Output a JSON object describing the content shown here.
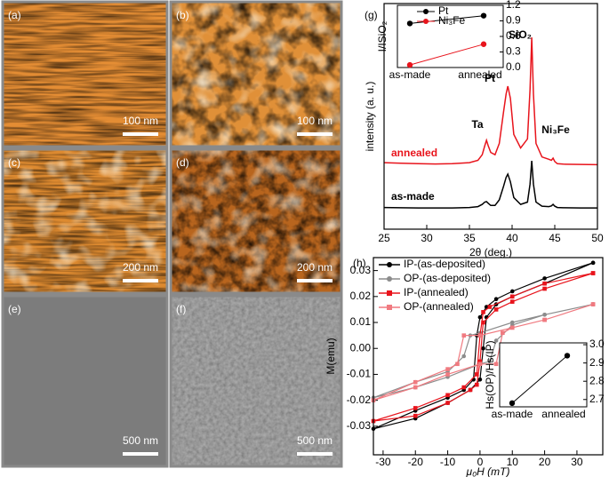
{
  "panels": [
    {
      "label": "(a)",
      "scale_bar": "100 nm"
    },
    {
      "label": "(b)",
      "scale_bar": "100 nm"
    },
    {
      "label": "(c)",
      "scale_bar": "200 nm"
    },
    {
      "label": "(d)",
      "scale_bar": "200 nm"
    },
    {
      "label": "(e)",
      "scale_bar": "500 nm"
    },
    {
      "label": "(f)",
      "scale_bar": "500 nm"
    }
  ],
  "chart_data": [
    {
      "type": "line",
      "label": "(g)",
      "x_label": "2θ (deg.)",
      "y_label": "intensity (a. u.)",
      "x": [
        25,
        27,
        29,
        31,
        33,
        35,
        36,
        36.5,
        36.8,
        37,
        37.2,
        37.5,
        38,
        38.5,
        39,
        39.3,
        39.5,
        39.8,
        40.2,
        41,
        41.8,
        42.1,
        42.3,
        42.5,
        42.8,
        43.5,
        44.3,
        44.6,
        44.8,
        45,
        45.3,
        46,
        48,
        50
      ],
      "series": [
        {
          "name": "annealed",
          "color": "#e8141c",
          "values": [
            29.5,
            29.2,
            29,
            28.9,
            29,
            29.5,
            30.5,
            33,
            37,
            39.4,
            37,
            34,
            33,
            38,
            52,
            60,
            63.4,
            58,
            42,
            36,
            40,
            62,
            85,
            60,
            38,
            32,
            31,
            30.5,
            31.5,
            30,
            29,
            28.8,
            28.7,
            28.6
          ]
        },
        {
          "name": "as-made",
          "color": "#000000",
          "values": [
            9.6,
            9.5,
            9.4,
            9.4,
            9.4,
            9.6,
            10,
            11,
            12,
            12.2,
            11.5,
            10.5,
            10.5,
            13,
            19,
            23,
            24.4,
            21,
            14,
            11,
            12,
            20,
            30.3,
            20,
            12,
            10.2,
            10,
            10.3,
            11,
            10.2,
            9.6,
            9.5,
            9.4,
            9.4
          ]
        }
      ],
      "annotations": [
        "Ta",
        "Pt",
        "SiO₂",
        "Ni₃Fe"
      ],
      "xlim": [
        25,
        50
      ],
      "ylim": [
        0,
        100
      ],
      "xticks": [
        25,
        30,
        35,
        40,
        45,
        50
      ]
    },
    {
      "type": "line",
      "y_label": "I/ISiO₂",
      "categories": [
        "as-made",
        "annealed"
      ],
      "series": [
        {
          "name": "Pt",
          "color": "#000000",
          "values": [
            0.85,
            1.0
          ]
        },
        {
          "name": "Ni₃Fe",
          "color": "#e8141c",
          "values": [
            0.05,
            0.45
          ]
        }
      ],
      "ylim": [
        0,
        1.2
      ],
      "yticks": [
        {
          "value": 0,
          "label": "0.0"
        },
        0.3,
        0.6,
        0.9,
        1.2
      ]
    },
    {
      "type": "loop",
      "label": "(h)",
      "x_label": "μ₀H (mT)",
      "y_label": "M(emu)",
      "series": [
        {
          "name": "IP-(as-deposited)",
          "color": "#000000",
          "x": [
            35,
            20,
            10,
            5,
            2,
            0,
            -1,
            -2,
            -5,
            -10,
            -20,
            -33,
            -20,
            -10,
            -3,
            0,
            1,
            2,
            5,
            10,
            20,
            35
          ],
          "values": [
            0.033,
            0.027,
            0.022,
            0.019,
            0.016,
            0.012,
            0.005,
            -0.012,
            -0.016,
            -0.019,
            -0.024,
            -0.031,
            -0.027,
            -0.021,
            -0.016,
            -0.012,
            0,
            0.012,
            0.017,
            0.02,
            0.025,
            0.033
          ]
        },
        {
          "name": "OP-(as-deposited)",
          "color": "#8c8c8c",
          "x": [
            35,
            20,
            10,
            0,
            -3,
            -5,
            -10,
            -20,
            -33,
            -20,
            -10,
            0,
            3,
            5,
            10,
            20,
            35
          ],
          "values": [
            0.017,
            0.013,
            0.01,
            0.006,
            0.005,
            -0.003,
            -0.009,
            -0.013,
            -0.019,
            -0.015,
            -0.011,
            -0.006,
            -0.005,
            0.003,
            0.009,
            0.013,
            0.017
          ]
        },
        {
          "name": "IP-(annealed)",
          "color": "#e8141c",
          "x": [
            35,
            20,
            10,
            3,
            1,
            0,
            -1,
            -5,
            -10,
            -20,
            -33,
            -20,
            -10,
            -3,
            -1,
            0,
            1,
            5,
            10,
            20,
            35
          ],
          "values": [
            0.029,
            0.025,
            0.02,
            0.016,
            0.014,
            0.005,
            -0.01,
            -0.015,
            -0.018,
            -0.023,
            -0.028,
            -0.026,
            -0.021,
            -0.016,
            -0.014,
            -0.005,
            0.01,
            0.015,
            0.018,
            0.023,
            0.029
          ]
        },
        {
          "name": "OP-(annealed)",
          "color": "#f07a80",
          "x": [
            35,
            20,
            10,
            0,
            -5,
            -7,
            -10,
            -20,
            -33,
            -20,
            -10,
            0,
            5,
            7,
            10,
            20,
            35
          ],
          "values": [
            0.017,
            0.011,
            0.008,
            0.005,
            0.005,
            -0.006,
            -0.008,
            -0.013,
            -0.02,
            -0.015,
            -0.01,
            -0.006,
            -0.006,
            0.006,
            0.008,
            0.011,
            0.017
          ]
        }
      ],
      "xlim": [
        -33,
        38
      ],
      "ylim": [
        -0.041,
        0.035
      ],
      "xticks": [
        -30,
        -20,
        -10,
        0,
        10,
        20,
        30
      ],
      "yticks": [
        -0.03,
        -0.02,
        -0.01,
        {
          "value": 0,
          "label": "0.00"
        },
        0.01,
        0.02,
        0.03
      ]
    },
    {
      "type": "line",
      "y_label": "Hs(OP)/Hs(IP)",
      "categories": [
        "as-made",
        "annealed"
      ],
      "series": [
        {
          "color": "#000000",
          "values": [
            2.68,
            2.94
          ]
        }
      ],
      "ylim": [
        2.66,
        3.01
      ],
      "yticks": [
        2.7,
        2.8,
        2.9,
        {
          "value": 3,
          "label": "3.0"
        }
      ]
    }
  ]
}
